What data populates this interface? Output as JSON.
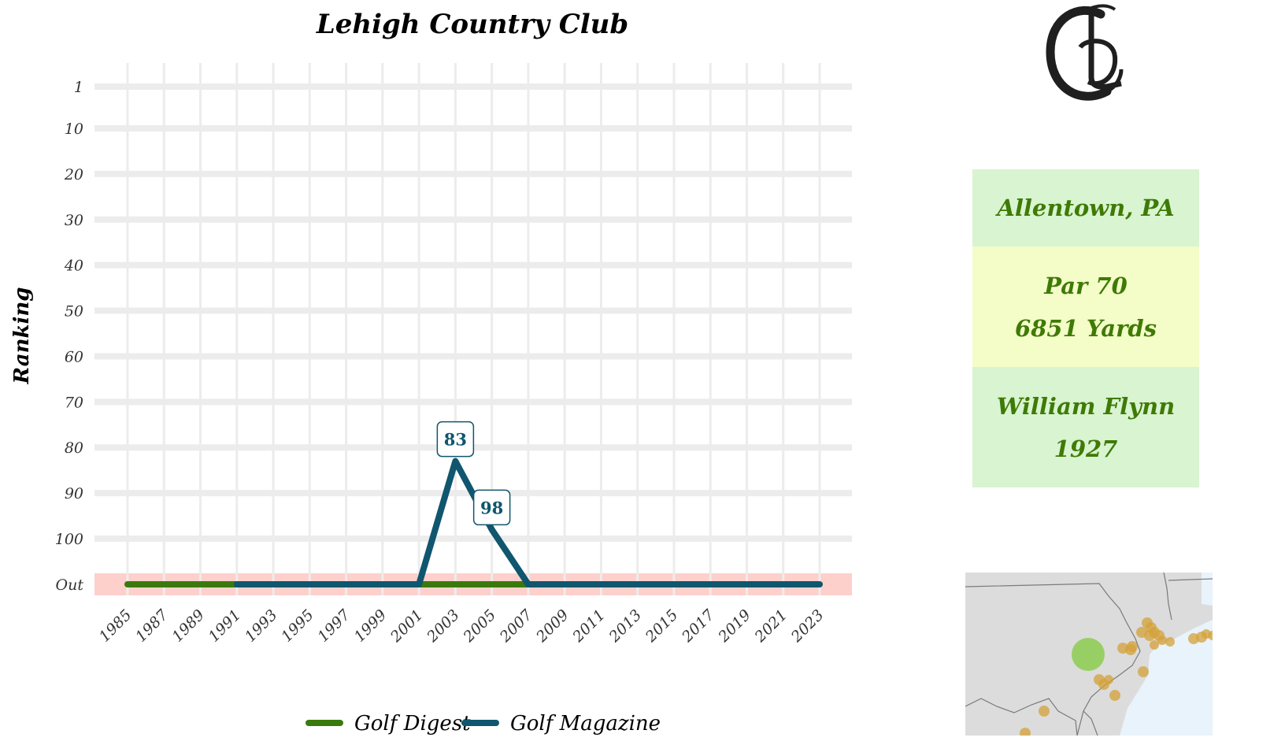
{
  "title": "Lehigh Country Club",
  "colors": {
    "golf_digest": "#3a7a0c",
    "golf_magazine": "#10566e",
    "out_band": "#fdd0cc",
    "location_bg": "#d8f4d0",
    "specs_bg": "#f4fcc8",
    "architect_bg": "#d8f4d0",
    "info_text": "#3f7a06",
    "map_land": "#dcdcdc",
    "map_water": "#e8f3fc",
    "map_marker": "#d4a23a",
    "map_highlight": "#8ccc50"
  },
  "logo": {
    "icon": "club-monogram-icon"
  },
  "chart_data": {
    "type": "line",
    "title": "Lehigh Country Club",
    "xlabel": "",
    "ylabel": "Ranking",
    "x": [
      1985,
      1987,
      1989,
      1991,
      1993,
      1995,
      1997,
      1999,
      2001,
      2003,
      2005,
      2007,
      2009,
      2011,
      2013,
      2015,
      2017,
      2019,
      2021,
      2023
    ],
    "x_tick_labels": [
      "1985",
      "1987",
      "1989",
      "1991",
      "1993",
      "1995",
      "1997",
      "1999",
      "2001",
      "2003",
      "2005",
      "2007",
      "2009",
      "2011",
      "2013",
      "2015",
      "2017",
      "2019",
      "2021",
      "2023"
    ],
    "y_tick_labels": [
      "1",
      "10",
      "20",
      "30",
      "40",
      "50",
      "60",
      "70",
      "80",
      "90",
      "100",
      "Out"
    ],
    "y_tick_values": [
      1,
      10,
      20,
      30,
      40,
      50,
      60,
      70,
      80,
      90,
      100,
      110
    ],
    "out_value": 110,
    "y_reversed": true,
    "grid": true,
    "legend_position": "bottom",
    "series": [
      {
        "name": "Golf Digest",
        "points": [
          [
            1985,
            "Out"
          ],
          [
            1991,
            "Out"
          ],
          [
            2001,
            "Out"
          ],
          [
            2007,
            "Out"
          ]
        ]
      },
      {
        "name": "Golf Magazine",
        "points": [
          [
            1991,
            "Out"
          ],
          [
            2001,
            "Out"
          ],
          [
            2003,
            83
          ],
          [
            2005,
            98
          ],
          [
            2007,
            "Out"
          ],
          [
            2023,
            "Out"
          ]
        ],
        "labels": [
          {
            "x": 2003,
            "y": 83,
            "text": "83"
          },
          {
            "x": 2005,
            "y": 98,
            "text": "98"
          }
        ]
      }
    ]
  },
  "info": {
    "location": "Allentown, PA",
    "par": "Par 70",
    "yards": "6851 Yards",
    "architect": "William Flynn",
    "year": "1927"
  },
  "map": {
    "highlight": {
      "name": "Allentown, PA",
      "icon": "location-marker-icon"
    },
    "other_courses_icon": "course-marker-icon"
  }
}
